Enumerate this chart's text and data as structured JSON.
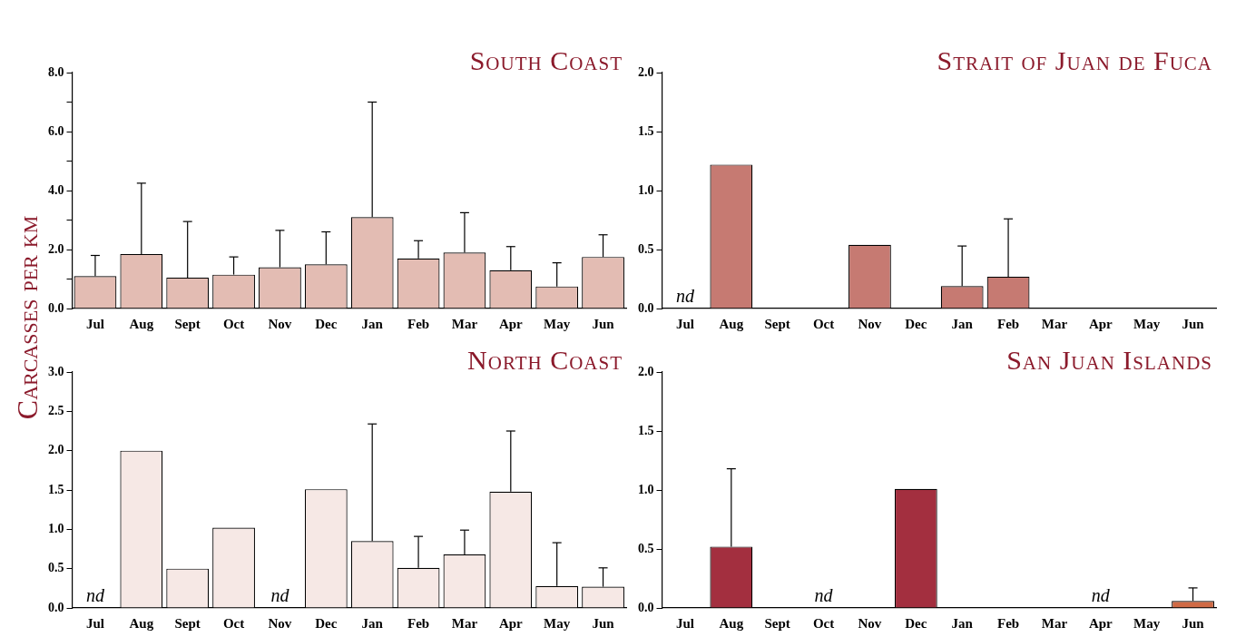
{
  "chart_data": [
    {
      "type": "bar",
      "title": "South Coast",
      "ylabel": "Carcasses per km",
      "categories": [
        "Jul",
        "Aug",
        "Sept",
        "Oct",
        "Nov",
        "Dec",
        "Jan",
        "Feb",
        "Mar",
        "Apr",
        "May",
        "Jun"
      ],
      "values": [
        1.1,
        1.85,
        1.05,
        1.15,
        1.4,
        1.5,
        3.1,
        1.7,
        1.9,
        1.3,
        0.75,
        1.75
      ],
      "color": "#e3bcb3",
      "errors": [
        [
          1.1,
          1.8
        ],
        [
          1.85,
          4.25
        ],
        [
          1.05,
          2.95
        ],
        [
          1.15,
          1.75
        ],
        [
          1.4,
          2.65
        ],
        [
          1.5,
          2.6
        ],
        [
          3.1,
          7.0
        ],
        [
          1.7,
          2.3
        ],
        [
          1.9,
          3.25
        ],
        [
          1.3,
          2.1
        ],
        [
          0.75,
          1.55
        ],
        [
          1.75,
          2.5
        ]
      ],
      "ylim": [
        0,
        8
      ],
      "yticks": [
        {
          "value": 0,
          "label": "0.0"
        },
        {
          "value": 1,
          "label": null
        },
        {
          "value": 2,
          "label": "2.0"
        },
        {
          "value": 3,
          "label": null
        },
        {
          "value": 4,
          "label": "4.0"
        },
        {
          "value": 5,
          "label": null
        },
        {
          "value": 6,
          "label": "6.0"
        },
        {
          "value": 7,
          "label": null
        },
        {
          "value": 8,
          "label": "8.0"
        }
      ],
      "legend": false
    },
    {
      "type": "bar",
      "title": "Strait of Juan de Fuca",
      "categories": [
        "Jul",
        "Aug",
        "Sept",
        "Oct",
        "Nov",
        "Dec",
        "Jan",
        "Feb",
        "Mar",
        "Apr",
        "May",
        "Jun"
      ],
      "values": [
        null,
        1.22,
        0,
        0,
        0.54,
        0,
        0.19,
        0.27,
        0,
        0,
        0,
        0
      ],
      "color": "#c67a72",
      "errors": [
        null,
        null,
        null,
        null,
        null,
        null,
        [
          0.19,
          0.53
        ],
        [
          0.27,
          0.76
        ],
        null,
        null,
        null,
        null
      ],
      "annotations": [
        "nd"
      ],
      "ylim": [
        0,
        2
      ],
      "yticks": [
        {
          "value": 0,
          "label": "0.0"
        },
        {
          "value": 0.5,
          "label": "0.5"
        },
        {
          "value": 1,
          "label": "1.0"
        },
        {
          "value": 1.5,
          "label": "1.5"
        },
        {
          "value": 2,
          "label": "2.0"
        }
      ],
      "legend": false
    },
    {
      "type": "bar",
      "title": "North Coast",
      "categories": [
        "Jul",
        "Aug",
        "Sept",
        "Oct",
        "Nov",
        "Dec",
        "Jan",
        "Feb",
        "Mar",
        "Apr",
        "May",
        "Jun"
      ],
      "values": [
        null,
        2.0,
        0.5,
        1.02,
        null,
        1.51,
        0.85,
        0.51,
        0.68,
        1.48,
        0.28,
        0.27
      ],
      "color": "#f6e8e5",
      "errors": [
        null,
        null,
        null,
        null,
        null,
        null,
        [
          0.85,
          2.34
        ],
        [
          0.51,
          0.91
        ],
        [
          0.68,
          0.99
        ],
        [
          1.48,
          2.25
        ],
        [
          0.28,
          0.83
        ],
        [
          0.27,
          0.51
        ]
      ],
      "annotations": [
        "nd",
        "nd"
      ],
      "ylim": [
        0,
        3
      ],
      "yticks": [
        {
          "value": 0,
          "label": "0.0"
        },
        {
          "value": 0.5,
          "label": "0.5"
        },
        {
          "value": 1,
          "label": "1.0"
        },
        {
          "value": 1.5,
          "label": "1.5"
        },
        {
          "value": 2,
          "label": "2.0"
        },
        {
          "value": 2.5,
          "label": "2.5"
        },
        {
          "value": 3,
          "label": "3.0"
        }
      ],
      "legend": false
    },
    {
      "type": "bar",
      "title": "San Juan Islands",
      "categories": [
        "Jul",
        "Aug",
        "Sept",
        "Oct",
        "Nov",
        "Dec",
        "Jan",
        "Feb",
        "Mar",
        "Apr",
        "May",
        "Jun"
      ],
      "values": [
        0,
        0.52,
        0,
        null,
        0,
        1.01,
        0,
        0,
        0,
        null,
        0,
        0.06
      ],
      "colors": [
        "#a32f3f",
        "#a32f3f",
        "#a32f3f",
        "#a32f3f",
        "#a32f3f",
        "#a32f3f",
        "#a32f3f",
        "#a32f3f",
        "#a32f3f",
        "#a32f3f",
        "#a32f3f",
        "#d06a45"
      ],
      "errors": [
        null,
        [
          0.52,
          1.18
        ],
        null,
        null,
        null,
        null,
        null,
        null,
        null,
        null,
        null,
        [
          0.06,
          0.17
        ]
      ],
      "annotations": [
        "nd",
        "nd"
      ],
      "ylim": [
        0,
        2
      ],
      "yticks": [
        {
          "value": 0,
          "label": "0.0"
        },
        {
          "value": 0.5,
          "label": "0.5"
        },
        {
          "value": 1,
          "label": "1.0"
        },
        {
          "value": 1.5,
          "label": "1.5"
        },
        {
          "value": 2,
          "label": "2.0"
        }
      ],
      "legend": false
    }
  ]
}
